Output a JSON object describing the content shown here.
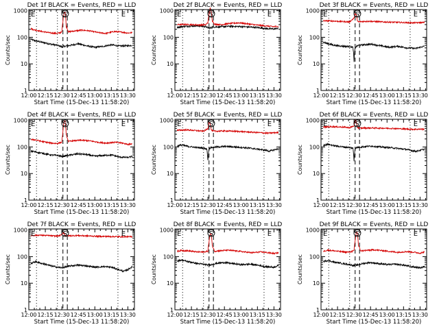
{
  "figure": {
    "title_suffix": "BLACK = Events, RED = LLD",
    "xlabel": "Start Time (15-Dec-13 11:58:20)",
    "ylabel": "Counts/sec",
    "yticks": [
      "1",
      "10",
      "100",
      "1000"
    ],
    "xticks": [
      "12:00",
      "12:15",
      "12:30",
      "12:45",
      "13:00",
      "13:15",
      "13:30"
    ],
    "markers": {
      "start": "E",
      "saa": "S",
      "end": "E"
    },
    "colors": {
      "events": "#000000",
      "lld": "#d40000"
    }
  },
  "chart_data": [
    {
      "type": "line",
      "title": "Det 1f BLACK = Events, RED = LLD",
      "xlabel": "Start Time (15-Dec-13 11:58:20)",
      "ylabel": "Counts/sec",
      "xlim": [
        "12:00",
        "13:36"
      ],
      "ylim": [
        1,
        1100
      ],
      "yscale": "log",
      "series": [
        {
          "name": "Events",
          "color": "#000000",
          "x_min": [
            2,
            5,
            12,
            20,
            26,
            30,
            33,
            38,
            45,
            52,
            60,
            68,
            75,
            82,
            90,
            94
          ],
          "values": [
            85,
            75,
            65,
            55,
            50,
            44,
            46,
            50,
            57,
            48,
            42,
            46,
            52,
            47,
            48,
            50
          ]
        },
        {
          "name": "LLD",
          "color": "#d40000",
          "x_min": [
            2,
            5,
            12,
            20,
            26,
            30,
            31,
            32,
            33,
            34,
            36,
            40,
            48,
            55,
            63,
            70,
            78,
            85,
            90,
            94
          ],
          "values": [
            210,
            190,
            165,
            145,
            140,
            155,
            380,
            900,
            880,
            260,
            160,
            170,
            185,
            175,
            150,
            140,
            165,
            155,
            145,
            150
          ]
        }
      ],
      "vlines_min": [
        7,
        26,
        31,
        35,
        81
      ],
      "vline_styles": [
        "dotted",
        "dotted",
        "dashed",
        "dashed",
        "dotted"
      ]
    },
    {
      "type": "line",
      "title": "Det 2f BLACK = Events, RED = LLD",
      "xlabel": "Start Time (15-Dec-13 11:58:20)",
      "ylabel": "Counts/sec",
      "xlim": [
        "12:00",
        "13:36"
      ],
      "ylim": [
        1,
        1100
      ],
      "yscale": "log",
      "series": [
        {
          "name": "Events",
          "color": "#000000",
          "x_min": [
            2,
            8,
            15,
            22,
            28,
            30,
            32,
            34,
            36,
            42,
            50,
            58,
            66,
            74,
            82,
            90,
            94
          ],
          "values": [
            240,
            255,
            265,
            270,
            250,
            230,
            220,
            240,
            245,
            250,
            260,
            255,
            245,
            235,
            215,
            205,
            220
          ]
        },
        {
          "name": "LLD",
          "color": "#d40000",
          "x_min": [
            2,
            8,
            15,
            22,
            28,
            30,
            31,
            32,
            33,
            34,
            36,
            42,
            50,
            58,
            66,
            74,
            82,
            90,
            94
          ],
          "values": [
            300,
            305,
            300,
            290,
            295,
            360,
            700,
            1250,
            900,
            420,
            310,
            300,
            330,
            350,
            320,
            290,
            270,
            250,
            260
          ]
        }
      ],
      "vlines_min": [
        7,
        26,
        31,
        35,
        81
      ],
      "vline_styles": [
        "dotted",
        "dotted",
        "dashed",
        "dashed",
        "dotted"
      ]
    },
    {
      "type": "line",
      "title": "Det 3f BLACK = Events, RED = LLD",
      "xlabel": "Start Time (15-Dec-13 11:58:20)",
      "ylabel": "Counts/sec",
      "xlim": [
        "12:00",
        "13:36"
      ],
      "ylim": [
        1,
        1100
      ],
      "yscale": "log",
      "series": [
        {
          "name": "Events",
          "color": "#000000",
          "x_min": [
            2,
            6,
            12,
            20,
            26,
            29,
            30,
            31,
            33,
            38,
            46,
            54,
            62,
            70,
            78,
            86,
            94
          ],
          "values": [
            65,
            58,
            50,
            46,
            45,
            42,
            12,
            40,
            48,
            52,
            55,
            48,
            42,
            46,
            40,
            38,
            46
          ]
        },
        {
          "name": "LLD",
          "color": "#d40000",
          "x_min": [
            2,
            10,
            20,
            26,
            30,
            31,
            32,
            33,
            34,
            36,
            44,
            54,
            64,
            74,
            84,
            94
          ],
          "values": [
            420,
            410,
            390,
            380,
            520,
            760,
            700,
            420,
            380,
            390,
            400,
            380,
            370,
            360,
            350,
            360
          ]
        }
      ],
      "vlines_min": [
        7,
        26,
        31,
        35,
        81
      ],
      "vline_styles": [
        "dotted",
        "dotted",
        "dashed",
        "dashed",
        "dotted"
      ]
    },
    {
      "type": "line",
      "title": "Det 4f BLACK = Events, RED = LLD",
      "xlabel": "Start Time (15-Dec-13 11:58:20)",
      "ylabel": "Counts/sec",
      "xlim": [
        "12:00",
        "13:36"
      ],
      "ylim": [
        1,
        1100
      ],
      "yscale": "log",
      "series": [
        {
          "name": "Events",
          "color": "#000000",
          "x_min": [
            2,
            6,
            12,
            20,
            26,
            30,
            33,
            38,
            45,
            52,
            60,
            68,
            75,
            82,
            90,
            94
          ],
          "values": [
            70,
            65,
            58,
            50,
            48,
            44,
            46,
            50,
            55,
            52,
            45,
            48,
            50,
            42,
            40,
            44
          ]
        },
        {
          "name": "LLD",
          "color": "#d40000",
          "x_min": [
            2,
            6,
            12,
            20,
            26,
            30,
            31,
            32,
            33,
            34,
            36,
            40,
            48,
            55,
            63,
            70,
            78,
            85,
            90,
            94
          ],
          "values": [
            190,
            185,
            160,
            140,
            135,
            150,
            350,
            950,
            900,
            280,
            160,
            170,
            180,
            170,
            150,
            140,
            150,
            140,
            125,
            130
          ]
        }
      ],
      "vlines_min": [
        7,
        26,
        31,
        35,
        81
      ],
      "vline_styles": [
        "dotted",
        "dotted",
        "dashed",
        "dashed",
        "dotted"
      ]
    },
    {
      "type": "line",
      "title": "Det 5f BLACK = Events, RED = LLD",
      "xlabel": "Start Time (15-Dec-13 11:58:20)",
      "ylabel": "Counts/sec",
      "xlim": [
        "12:00",
        "13:36"
      ],
      "ylim": [
        1,
        1100
      ],
      "yscale": "log",
      "series": [
        {
          "name": "Events",
          "color": "#000000",
          "x_min": [
            2,
            6,
            12,
            20,
            26,
            29,
            30,
            31,
            33,
            38,
            46,
            54,
            62,
            70,
            78,
            86,
            94
          ],
          "values": [
            110,
            118,
            105,
            95,
            90,
            85,
            30,
            85,
            95,
            100,
            105,
            100,
            95,
            88,
            80,
            70,
            85
          ]
        },
        {
          "name": "LLD",
          "color": "#d40000",
          "x_min": [
            2,
            10,
            20,
            26,
            30,
            31,
            32,
            33,
            34,
            36,
            44,
            54,
            64,
            74,
            84,
            94
          ],
          "values": [
            420,
            440,
            410,
            390,
            480,
            850,
            800,
            450,
            400,
            390,
            400,
            390,
            370,
            350,
            330,
            350
          ]
        }
      ],
      "vlines_min": [
        7,
        26,
        31,
        35,
        81
      ],
      "vline_styles": [
        "dotted",
        "dotted",
        "dashed",
        "dashed",
        "dotted"
      ]
    },
    {
      "type": "line",
      "title": "Det 6f BLACK = Events, RED = LLD",
      "xlabel": "Start Time (15-Dec-13 11:58:20)",
      "ylabel": "Counts/sec",
      "xlim": [
        "12:00",
        "13:36"
      ],
      "ylim": [
        1,
        1100
      ],
      "yscale": "log",
      "series": [
        {
          "name": "Events",
          "color": "#000000",
          "x_min": [
            2,
            6,
            12,
            20,
            26,
            29,
            30,
            31,
            33,
            38,
            46,
            54,
            62,
            70,
            78,
            86,
            94
          ],
          "values": [
            115,
            125,
            112,
            100,
            95,
            90,
            30,
            88,
            96,
            102,
            108,
            100,
            95,
            88,
            80,
            68,
            82
          ]
        },
        {
          "name": "LLD",
          "color": "#d40000",
          "x_min": [
            2,
            10,
            20,
            26,
            30,
            31,
            32,
            33,
            34,
            36,
            44,
            54,
            64,
            74,
            84,
            94
          ],
          "values": [
            560,
            580,
            560,
            530,
            620,
            980,
            900,
            560,
            520,
            510,
            520,
            510,
            500,
            480,
            460,
            470
          ]
        }
      ],
      "vlines_min": [
        7,
        26,
        31,
        35,
        81
      ],
      "vline_styles": [
        "dotted",
        "dotted",
        "dashed",
        "dashed",
        "dotted"
      ]
    },
    {
      "type": "line",
      "title": "Det 7f BLACK = Events, RED = LLD",
      "xlabel": "Start Time (15-Dec-13 11:58:20)",
      "ylabel": "Counts/sec",
      "xlim": [
        "12:00",
        "13:36"
      ],
      "ylim": [
        1,
        1100
      ],
      "yscale": "log",
      "series": [
        {
          "name": "Events",
          "color": "#000000",
          "x_min": [
            2,
            6,
            12,
            20,
            26,
            30,
            33,
            38,
            45,
            52,
            60,
            68,
            75,
            82,
            86,
            90,
            94
          ],
          "values": [
            55,
            65,
            55,
            45,
            40,
            38,
            40,
            45,
            48,
            45,
            40,
            42,
            40,
            32,
            28,
            32,
            42
          ]
        },
        {
          "name": "LLD",
          "color": "#d40000",
          "x_min": [
            2,
            10,
            20,
            26,
            30,
            31,
            32,
            33,
            34,
            36,
            44,
            54,
            64,
            74,
            84,
            94
          ],
          "values": [
            620,
            640,
            610,
            590,
            650,
            800,
            760,
            640,
            600,
            610,
            620,
            600,
            580,
            570,
            560,
            560
          ]
        }
      ],
      "vlines_min": [
        7,
        26,
        31,
        35,
        81
      ],
      "vline_styles": [
        "dotted",
        "dotted",
        "dashed",
        "dashed",
        "dotted"
      ]
    },
    {
      "type": "line",
      "title": "Det 8f BLACK = Events, RED = LLD",
      "xlabel": "Start Time (15-Dec-13 11:58:20)",
      "ylabel": "Counts/sec",
      "xlim": [
        "12:00",
        "13:36"
      ],
      "ylim": [
        1,
        1100
      ],
      "yscale": "log",
      "series": [
        {
          "name": "Events",
          "color": "#000000",
          "x_min": [
            2,
            6,
            12,
            20,
            26,
            30,
            33,
            38,
            45,
            52,
            60,
            68,
            75,
            82,
            90,
            94
          ],
          "values": [
            68,
            74,
            65,
            55,
            52,
            48,
            50,
            56,
            60,
            55,
            50,
            52,
            48,
            42,
            40,
            46
          ]
        },
        {
          "name": "LLD",
          "color": "#d40000",
          "x_min": [
            2,
            6,
            12,
            20,
            26,
            30,
            31,
            32,
            33,
            34,
            36,
            40,
            48,
            55,
            63,
            70,
            78,
            85,
            90,
            94
          ],
          "values": [
            160,
            170,
            165,
            150,
            148,
            160,
            350,
            700,
            680,
            250,
            160,
            165,
            175,
            165,
            150,
            140,
            150,
            140,
            130,
            140
          ]
        }
      ],
      "vlines_min": [
        7,
        26,
        31,
        35,
        81
      ],
      "vline_styles": [
        "dotted",
        "dotted",
        "dashed",
        "dashed",
        "dotted"
      ]
    },
    {
      "type": "line",
      "title": "Det 9f BLACK = Events, RED = LLD",
      "xlabel": "Start Time (15-Dec-13 11:58:20)",
      "ylabel": "Counts/sec",
      "xlim": [
        "12:00",
        "13:36"
      ],
      "ylim": [
        1,
        1100
      ],
      "yscale": "log",
      "series": [
        {
          "name": "Events",
          "color": "#000000",
          "x_min": [
            2,
            6,
            12,
            20,
            26,
            30,
            33,
            38,
            45,
            52,
            60,
            68,
            75,
            82,
            90,
            94
          ],
          "values": [
            65,
            72,
            62,
            55,
            50,
            46,
            48,
            55,
            60,
            55,
            50,
            52,
            48,
            42,
            38,
            42
          ]
        },
        {
          "name": "LLD",
          "color": "#d40000",
          "x_min": [
            2,
            6,
            12,
            20,
            26,
            30,
            31,
            32,
            33,
            34,
            36,
            40,
            48,
            55,
            63,
            70,
            78,
            85,
            90,
            94
          ],
          "values": [
            160,
            175,
            165,
            150,
            148,
            165,
            380,
            820,
            800,
            260,
            165,
            170,
            180,
            170,
            155,
            145,
            155,
            145,
            135,
            150
          ]
        }
      ],
      "vlines_min": [
        7,
        26,
        31,
        35,
        81
      ],
      "vline_styles": [
        "dotted",
        "dotted",
        "dashed",
        "dashed",
        "dotted"
      ]
    }
  ]
}
